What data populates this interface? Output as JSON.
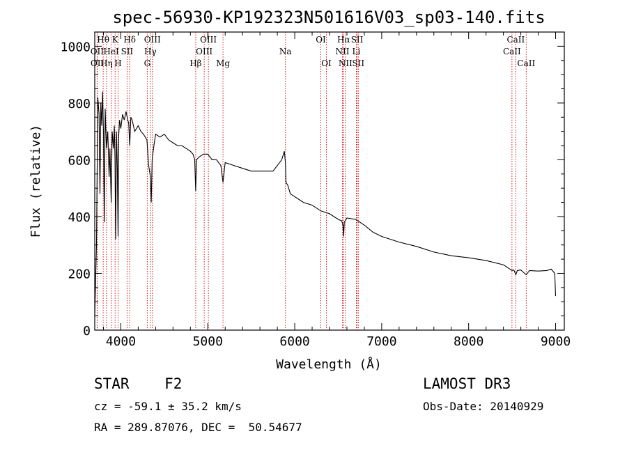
{
  "chart_data": {
    "type": "line",
    "title": "spec-56930-KP192323N501616V03_sp03-140.fits",
    "xlabel": "Wavelength (Å)",
    "ylabel": "Flux (relative)",
    "xlim": [
      3700,
      9100
    ],
    "ylim": [
      0,
      1050
    ],
    "xticks": [
      4000,
      5000,
      6000,
      7000,
      8000,
      9000
    ],
    "yticks": [
      0,
      200,
      400,
      600,
      800,
      1000
    ],
    "grid": false,
    "line_color": "#000000",
    "marker_color": "#cc0000",
    "spectrum": {
      "name": "Flux",
      "x": [
        3700,
        3720,
        3735,
        3750,
        3760,
        3770,
        3780,
        3790,
        3800,
        3810,
        3820,
        3835,
        3850,
        3865,
        3875,
        3889,
        3900,
        3915,
        3925,
        3933,
        3940,
        3950,
        3960,
        3968,
        3975,
        3985,
        4000,
        4020,
        4040,
        4060,
        4080,
        4090,
        4102,
        4115,
        4130,
        4160,
        4200,
        4230,
        4260,
        4300,
        4320,
        4340,
        4350,
        4360,
        4380,
        4400,
        4450,
        4500,
        4550,
        4600,
        4650,
        4700,
        4750,
        4800,
        4830,
        4850,
        4861,
        4870,
        4900,
        4950,
        5000,
        5050,
        5100,
        5150,
        5175,
        5200,
        5300,
        5400,
        5500,
        5600,
        5700,
        5750,
        5800,
        5850,
        5880,
        5893,
        5900,
        5920,
        5950,
        6000,
        6050,
        6100,
        6200,
        6300,
        6400,
        6500,
        6540,
        6555,
        6563,
        6570,
        6600,
        6700,
        6800,
        6900,
        7000,
        7200,
        7400,
        7600,
        7800,
        8000,
        8200,
        8400,
        8498,
        8520,
        8542,
        8560,
        8600,
        8662,
        8700,
        8800,
        8900,
        8950,
        8990,
        9000
      ],
      "y": [
        50,
        300,
        820,
        760,
        480,
        800,
        720,
        840,
        700,
        380,
        780,
        640,
        700,
        540,
        640,
        450,
        700,
        640,
        720,
        600,
        320,
        700,
        560,
        330,
        680,
        740,
        710,
        760,
        740,
        770,
        740,
        730,
        650,
        750,
        740,
        700,
        720,
        700,
        690,
        670,
        580,
        540,
        450,
        600,
        650,
        690,
        680,
        690,
        670,
        660,
        650,
        650,
        640,
        630,
        620,
        600,
        490,
        600,
        610,
        620,
        620,
        600,
        600,
        580,
        520,
        590,
        580,
        570,
        560,
        560,
        560,
        560,
        580,
        600,
        630,
        590,
        520,
        510,
        480,
        470,
        460,
        450,
        440,
        420,
        410,
        390,
        385,
        370,
        330,
        380,
        395,
        390,
        370,
        345,
        330,
        310,
        295,
        275,
        262,
        255,
        245,
        230,
        210,
        212,
        195,
        210,
        212,
        195,
        210,
        208,
        210,
        215,
        200,
        120
      ]
    },
    "lines": [
      {
        "label": "Hθ",
        "wave": 3797,
        "row": 1
      },
      {
        "label": "OII",
        "wave": 3727,
        "row": 2
      },
      {
        "label": "OII",
        "wave": 3729,
        "row": 3
      },
      {
        "label": "Hη",
        "wave": 3835,
        "row": 3
      },
      {
        "label": "HeI",
        "wave": 3889,
        "row": 2
      },
      {
        "label": "K",
        "wave": 3934,
        "row": 1
      },
      {
        "label": "H",
        "wave": 3968,
        "row": 3
      },
      {
        "label": "SII",
        "wave": 4072,
        "row": 2
      },
      {
        "label": "Hδ",
        "wave": 4102,
        "row": 1
      },
      {
        "label": "OIII",
        "wave": 4363,
        "row": 1
      },
      {
        "label": "Hγ",
        "wave": 4340,
        "row": 2
      },
      {
        "label": "G",
        "wave": 4304,
        "row": 3
      },
      {
        "label": "Hβ",
        "wave": 4861,
        "row": 3
      },
      {
        "label": "OIII",
        "wave": 4959,
        "row": 2
      },
      {
        "label": "OIII",
        "wave": 5007,
        "row": 1
      },
      {
        "label": "Mg",
        "wave": 5175,
        "row": 3
      },
      {
        "label": "Na",
        "wave": 5893,
        "row": 2
      },
      {
        "label": "OI",
        "wave": 6300,
        "row": 1
      },
      {
        "label": "OI",
        "wave": 6364,
        "row": 3
      },
      {
        "label": "Hα",
        "wave": 6563,
        "row": 1
      },
      {
        "label": "NII",
        "wave": 6548,
        "row": 2
      },
      {
        "label": "NII",
        "wave": 6583,
        "row": 3
      },
      {
        "label": "SII",
        "wave": 6717,
        "row": 1
      },
      {
        "label": "Li",
        "wave": 6708,
        "row": 2
      },
      {
        "label": "SII",
        "wave": 6731,
        "row": 3
      },
      {
        "label": "CaII",
        "wave": 8542,
        "row": 1
      },
      {
        "label": "CaII",
        "wave": 8498,
        "row": 2
      },
      {
        "label": "CaII",
        "wave": 8662,
        "row": 3
      }
    ]
  },
  "info": {
    "class_text": "STAR    F2",
    "survey": "LAMOST DR3",
    "cz": "cz = -59.1 ± 35.2 km/s",
    "obs_date": "Obs-Date: 20140929",
    "radec": "RA = 289.87076, DEC =  50.54677"
  }
}
